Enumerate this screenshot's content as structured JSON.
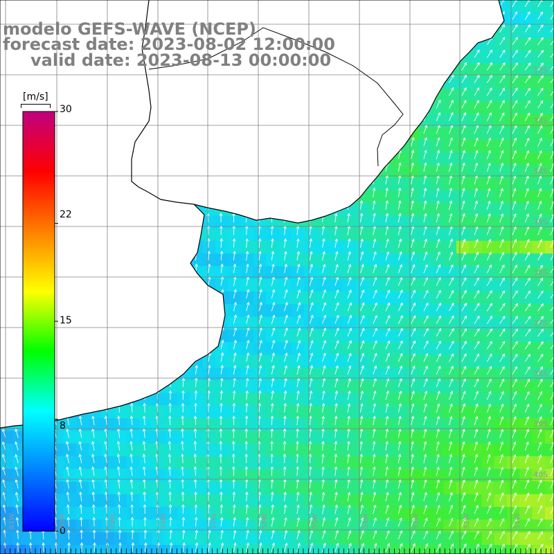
{
  "title": {
    "line1": "modelo GEFS-WAVE (NCEP)",
    "line2": "forecast date: 2023-08-02 12:00:00",
    "line3": "valid date: 2023-08-13 00:00:00"
  },
  "colorbar": {
    "unit": "[m/s]",
    "min": 0,
    "max": 30,
    "ticks": [
      "30",
      "22",
      "15",
      "8",
      "0"
    ],
    "tick_values": [
      30,
      22,
      15,
      8,
      0
    ],
    "colors": [
      "#0000ff",
      "#0080ff",
      "#00ffff",
      "#00ff00",
      "#ffff00",
      "#ff8000",
      "#ff0000",
      "#c00080"
    ]
  },
  "map": {
    "lat_labels": [
      "32S",
      "33S",
      "34S",
      "35S",
      "36S",
      "37S",
      "38S",
      "39S",
      "40S"
    ],
    "lon_labels": [
      "61W",
      "60W",
      "59W",
      "58W",
      "57W",
      "56W",
      "55W",
      "54W",
      "53W",
      "52W",
      "51W"
    ],
    "colors": {
      "land": "#ffffff",
      "grid": "#808080",
      "coast": "#000000",
      "arrow": "#ffffff",
      "low": "#1e7bff",
      "mid": "#10e0f0",
      "high": "#40ee30"
    }
  }
}
